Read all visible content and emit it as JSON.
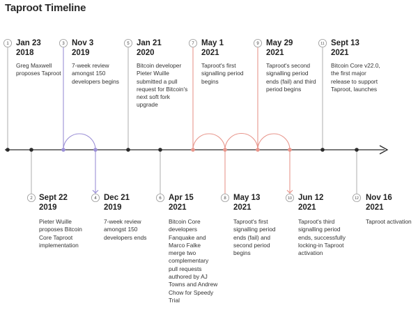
{
  "title": "Taproot Timeline",
  "colors": {
    "axis": "#2b2b2b",
    "connector_gray": "#b5b5b5",
    "purple": "#9b8fd6",
    "red": "#e8968c",
    "badge_border": "#9a9a9a"
  },
  "events": [
    {
      "num": "1",
      "date_line1": "Jan 23",
      "date_line2": "2018",
      "desc": "Greg Maxwell proposes Taproot",
      "color": "gray"
    },
    {
      "num": "2",
      "date_line1": "Sept 22",
      "date_line2": "2019",
      "desc": "Pieter Wuille proposes Bitcoin Core Taproot implementation",
      "color": "gray"
    },
    {
      "num": "3",
      "date_line1": "Nov 3",
      "date_line2": "2019",
      "desc": "7-week review amongst 150 developers begins",
      "color": "purple"
    },
    {
      "num": "4",
      "date_line1": "Dec 21",
      "date_line2": "2019",
      "desc": "7-week review amongst 150 developers ends",
      "color": "purple"
    },
    {
      "num": "5",
      "date_line1": "Jan 21",
      "date_line2": "2020",
      "desc": "Bitcoin developer Pieter Wuille submitted a pull request for Bitcoin's next soft fork upgrade",
      "color": "gray"
    },
    {
      "num": "6",
      "date_line1": "Apr 15",
      "date_line2": "2021",
      "desc": "Bitcoin Core developers Fanquake and Marco Falke merge two complementary pull requests authored by AJ Towns and Andrew Chow for Speedy Trial",
      "color": "gray"
    },
    {
      "num": "7",
      "date_line1": "May 1",
      "date_line2": "2021",
      "desc": "Taproot's first signalling period begins",
      "color": "red"
    },
    {
      "num": "8",
      "date_line1": "May 13",
      "date_line2": "2021",
      "desc": "Taproot's first signalling period ends (fail) and second period begins",
      "color": "red"
    },
    {
      "num": "9",
      "date_line1": "May 29",
      "date_line2": "2021",
      "desc": "Taproot's second signalling period ends (fail) and third period begins",
      "color": "red"
    },
    {
      "num": "10",
      "date_line1": "Jun 12",
      "date_line2": "2021",
      "desc": "Taproot's third signalling period ends, successfully locking-in Taproot activation",
      "color": "red"
    },
    {
      "num": "11",
      "date_line1": "Sept 13",
      "date_line2": "2021",
      "desc": "Bitcoin Core v22.0, the first major release to support Taproot, launches",
      "color": "gray"
    },
    {
      "num": "12",
      "date_line1": "Nov 16",
      "date_line2": "2021",
      "desc": "Taproot activation",
      "color": "gray"
    }
  ]
}
